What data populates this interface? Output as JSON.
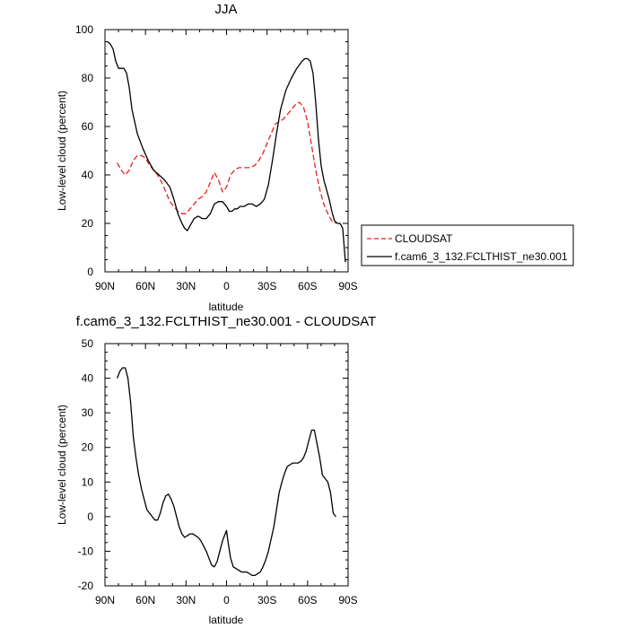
{
  "chart_data": [
    {
      "type": "line",
      "title": "JJA",
      "xlabel": "latitude",
      "ylabel": "Low-level cloud (percent)",
      "xlim": [
        -90,
        90
      ],
      "ylim": [
        0,
        100
      ],
      "x_ticks": [
        -90,
        -60,
        -30,
        0,
        30,
        60,
        90
      ],
      "x_tick_labels": [
        "90N",
        "60N",
        "30N",
        "0",
        "30S",
        "60S",
        "90S"
      ],
      "y_ticks": [
        0,
        20,
        40,
        60,
        80,
        100
      ],
      "y_tick_labels": [
        "0",
        "20",
        "40",
        "60",
        "80",
        "100"
      ],
      "legend_position": "right, outside the plot",
      "series": [
        {
          "name": "CLOUDSAT",
          "color": "#e8201e",
          "dash": "dashed",
          "x": [
            -81,
            -78,
            -75,
            -72,
            -69,
            -66,
            -63,
            -60,
            -57,
            -54,
            -51,
            -48,
            -45,
            -42,
            -39,
            -36,
            -33,
            -30,
            -27,
            -24,
            -21,
            -18,
            -15,
            -12,
            -9,
            -6,
            -3,
            0,
            3,
            6,
            9,
            12,
            15,
            18,
            21,
            24,
            27,
            30,
            33,
            36,
            39,
            42,
            45,
            48,
            51,
            54,
            57,
            60,
            63,
            66,
            69,
            72,
            75,
            78,
            81
          ],
          "values": [
            45,
            42,
            40,
            42,
            46,
            48,
            48,
            47,
            44,
            42,
            40,
            37,
            33,
            29,
            27,
            25,
            24,
            24,
            26,
            28,
            30,
            31,
            33,
            37,
            41,
            38,
            33,
            35,
            40,
            42,
            43,
            43,
            43,
            43,
            44,
            46,
            49,
            53,
            57,
            61,
            62,
            63,
            65,
            67,
            69,
            70,
            68,
            62,
            52,
            42,
            34,
            28,
            24,
            21,
            20
          ]
        },
        {
          "name": "f.cam6_3_132.FCLTHIST_ne30.001",
          "color": "#000000",
          "dash": "solid",
          "x": [
            -88,
            -86,
            -84,
            -82,
            -80,
            -78,
            -76,
            -74,
            -72,
            -70,
            -66,
            -62,
            -58,
            -54,
            -50,
            -46,
            -42,
            -39,
            -36,
            -33,
            -31,
            -29,
            -27,
            -24,
            -21,
            -18,
            -15,
            -12,
            -9,
            -6,
            -3,
            0,
            2,
            4,
            6,
            8,
            10,
            13,
            16,
            19,
            22,
            25,
            28,
            31,
            34,
            37,
            40,
            44,
            48,
            52,
            56,
            58,
            60,
            62,
            64,
            66,
            68,
            70,
            72,
            74,
            76,
            78,
            80,
            82,
            84,
            86,
            88
          ],
          "values": [
            95,
            94,
            92,
            87,
            84,
            84,
            84,
            82,
            76,
            67,
            57,
            51,
            46,
            42,
            40,
            38,
            35,
            30,
            24,
            20,
            18,
            17,
            19,
            22,
            23,
            22,
            22,
            24,
            28,
            29,
            29,
            27,
            25,
            25,
            26,
            26,
            27,
            27,
            28,
            28,
            27,
            28,
            30,
            36,
            46,
            57,
            67,
            75,
            80,
            84,
            87,
            88,
            88,
            87,
            82,
            70,
            55,
            44,
            38,
            34,
            30,
            25,
            21,
            20,
            20,
            18,
            4
          ]
        }
      ]
    },
    {
      "type": "line",
      "title": "f.cam6_3_132.FCLTHIST_ne30.001 - CLOUDSAT",
      "xlabel": "latitude",
      "ylabel": "Low-level cloud (percent)",
      "xlim": [
        -90,
        90
      ],
      "ylim": [
        -20,
        50
      ],
      "x_ticks": [
        -90,
        -60,
        -30,
        0,
        30,
        60,
        90
      ],
      "x_tick_labels": [
        "90N",
        "60N",
        "30N",
        "0",
        "30S",
        "60S",
        "90S"
      ],
      "y_ticks": [
        -20,
        -10,
        0,
        10,
        20,
        30,
        40,
        50
      ],
      "y_tick_labels": [
        "-20",
        "-10",
        "0",
        "10",
        "20",
        "30",
        "40",
        "50"
      ],
      "series": [
        {
          "color": "#000000",
          "dash": "solid",
          "x": [
            -81,
            -79,
            -77,
            -75,
            -73,
            -71,
            -69,
            -67,
            -65,
            -63,
            -61,
            -59,
            -57,
            -55,
            -53,
            -51,
            -49,
            -47,
            -45,
            -43,
            -41,
            -39,
            -37,
            -35,
            -33,
            -31,
            -29,
            -27,
            -25,
            -23,
            -21,
            -19,
            -17,
            -15,
            -13,
            -11,
            -9,
            -7,
            -5,
            -3,
            -1,
            0,
            1,
            3,
            5,
            7,
            9,
            11,
            13,
            15,
            17,
            19,
            21,
            23,
            25,
            27,
            29,
            31,
            33,
            35,
            37,
            39,
            41,
            43,
            45,
            47,
            49,
            51,
            53,
            55,
            57,
            59,
            61,
            63,
            65,
            67,
            69,
            71,
            73,
            75,
            77,
            79,
            81
          ],
          "values": [
            40,
            42,
            43,
            43,
            40,
            33,
            23,
            17,
            12,
            8,
            5,
            2,
            1,
            0,
            -1,
            -1,
            1,
            4,
            6,
            6.5,
            5,
            3,
            0,
            -3,
            -5,
            -6,
            -5.5,
            -5,
            -5,
            -5.5,
            -6,
            -7,
            -8.5,
            -10,
            -12,
            -14,
            -14.5,
            -13,
            -10,
            -7,
            -5,
            -4,
            -7,
            -12,
            -14.5,
            -15,
            -15.5,
            -16,
            -16,
            -16,
            -16.5,
            -17,
            -17,
            -16.5,
            -16,
            -14.5,
            -12.5,
            -10,
            -6.5,
            -3,
            2,
            7,
            10,
            12.5,
            14.5,
            15,
            15.5,
            15.5,
            15.5,
            16,
            17,
            19,
            22,
            25,
            25,
            21,
            17,
            12,
            11,
            10,
            7,
            1,
            0
          ]
        }
      ]
    }
  ]
}
